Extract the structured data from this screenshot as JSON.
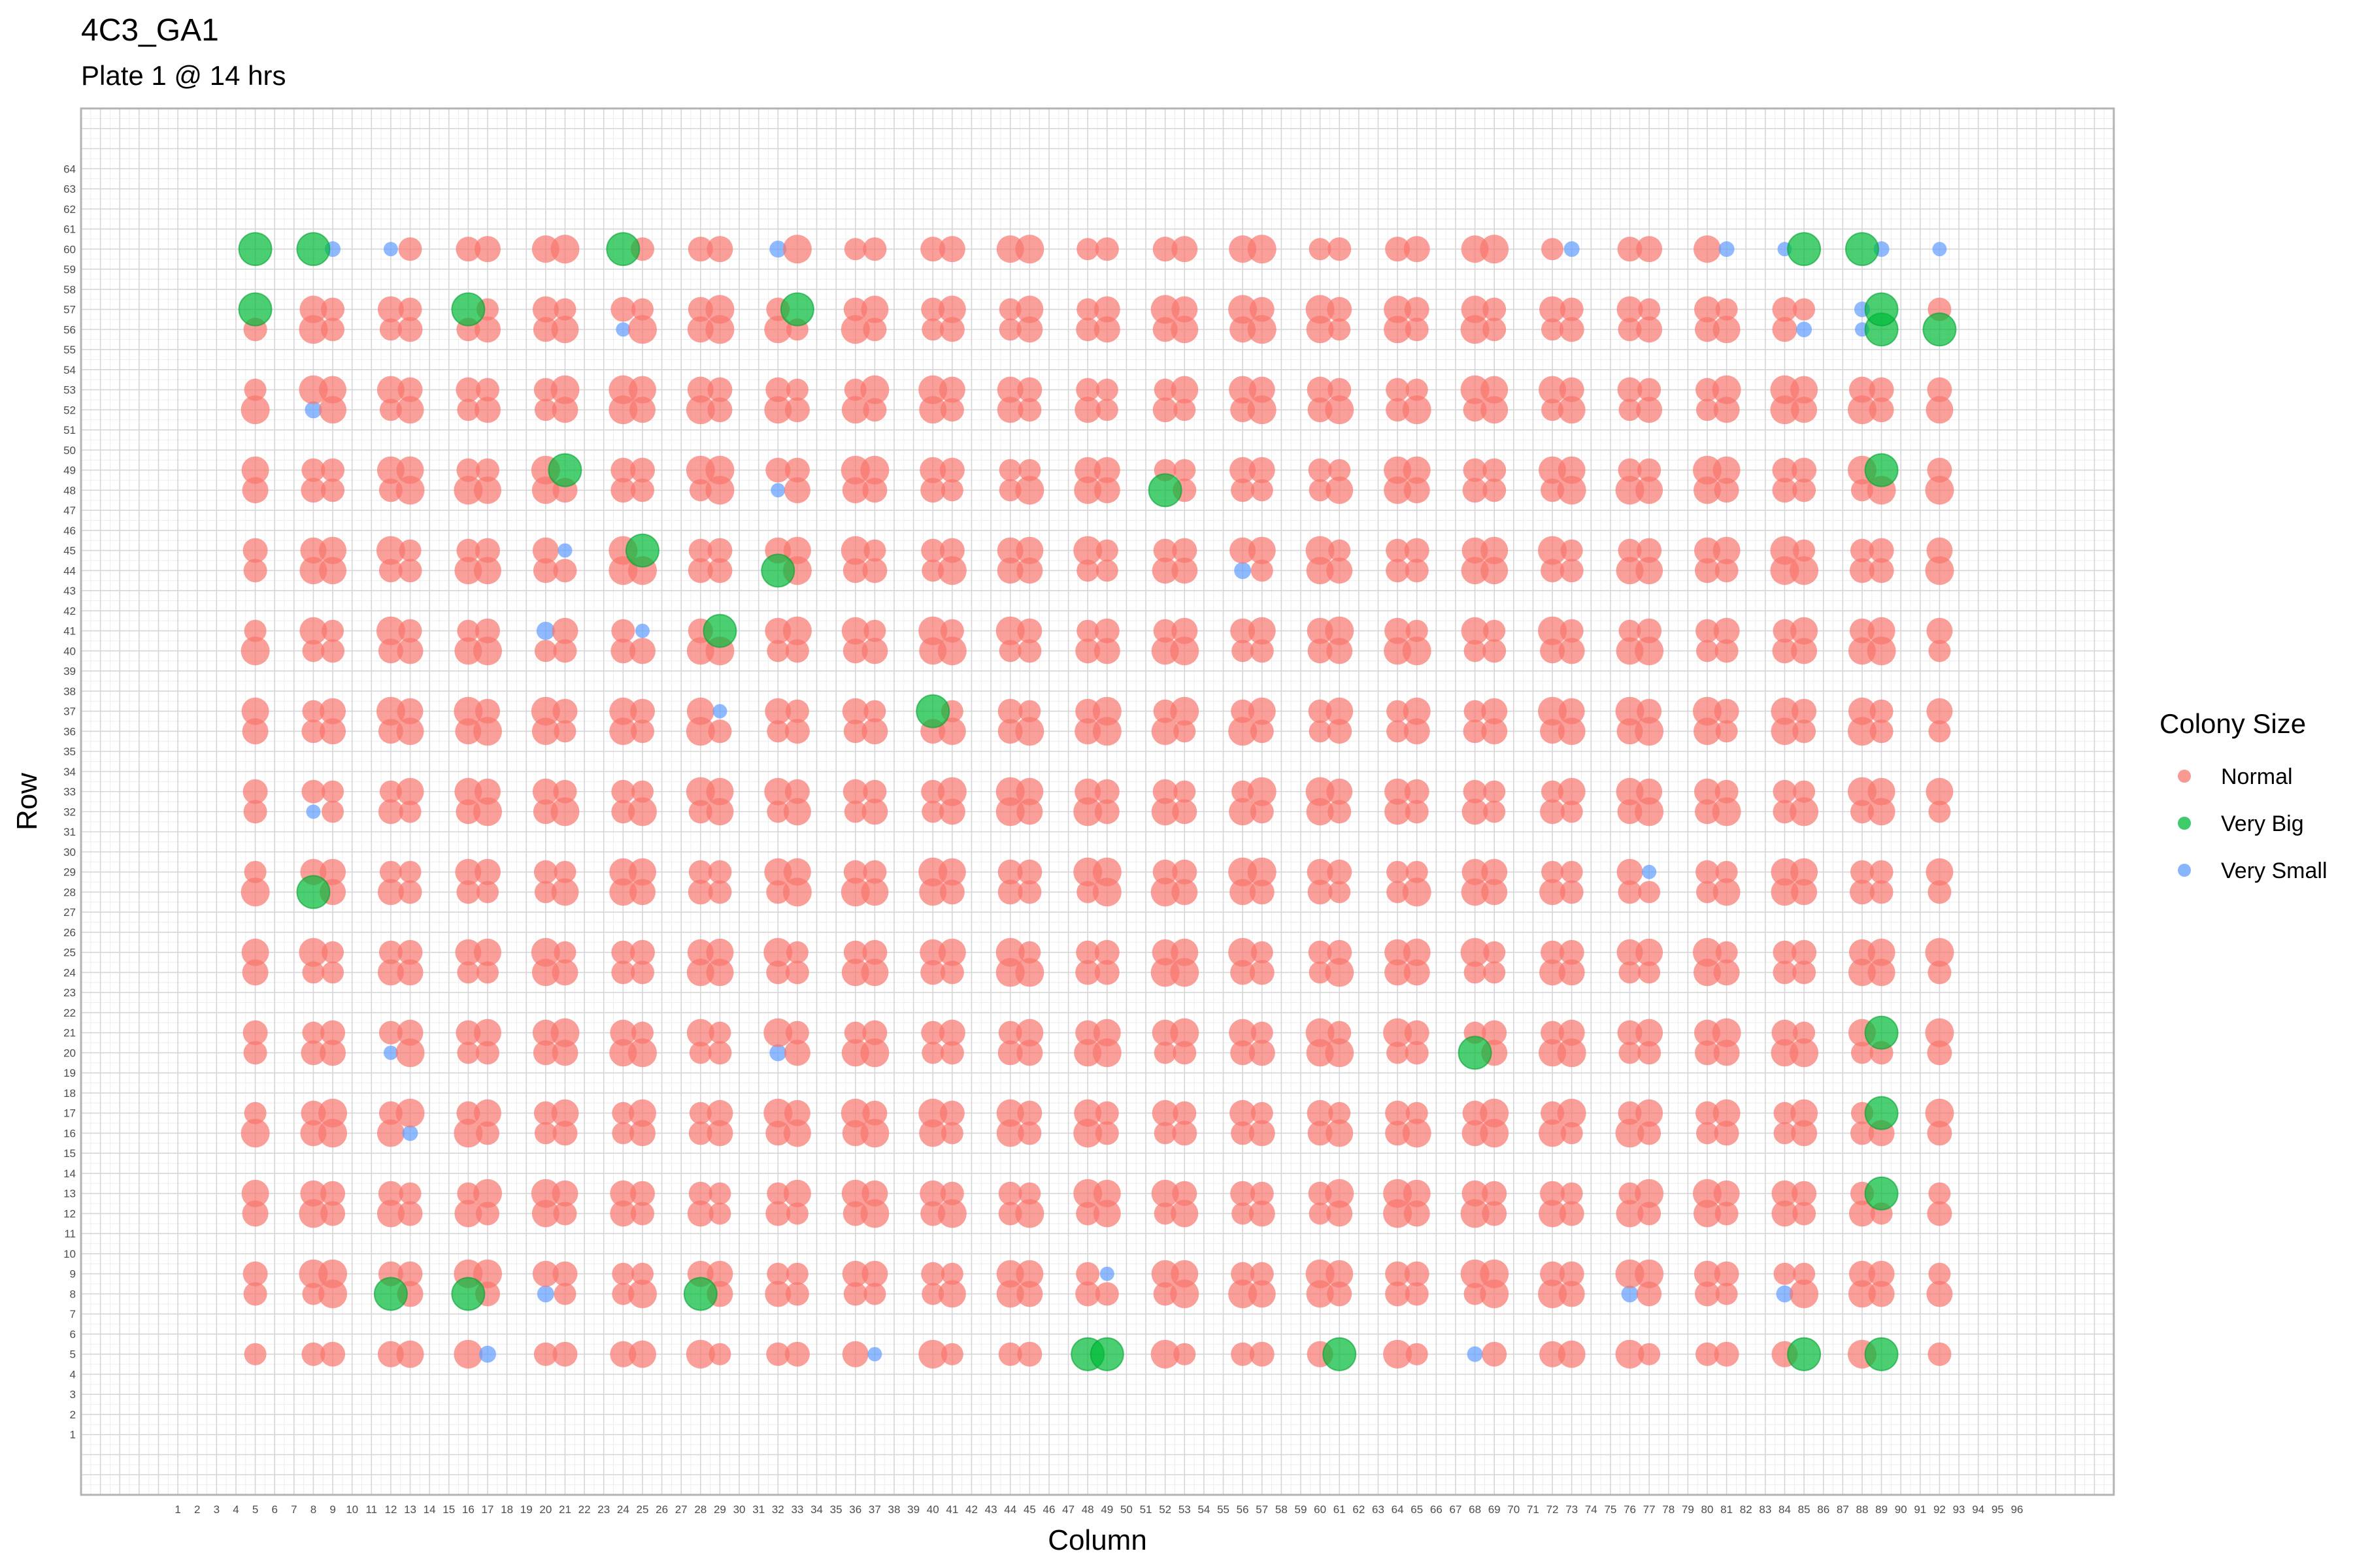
{
  "chart_data": {
    "type": "scatter",
    "title": "4C3_GA1",
    "subtitle": "Plate 1 @ 14 hrs",
    "xlabel": "Column",
    "ylabel": "Row",
    "xlim": [
      -4,
      101
    ],
    "ylim": [
      -2,
      67
    ],
    "x_ticks": [
      1,
      2,
      3,
      4,
      5,
      6,
      7,
      8,
      9,
      10,
      11,
      12,
      13,
      14,
      15,
      16,
      17,
      18,
      19,
      20,
      21,
      22,
      23,
      24,
      25,
      26,
      27,
      28,
      29,
      30,
      31,
      32,
      33,
      34,
      35,
      36,
      37,
      38,
      39,
      40,
      41,
      42,
      43,
      44,
      45,
      46,
      47,
      48,
      49,
      50,
      51,
      52,
      53,
      54,
      55,
      56,
      57,
      58,
      59,
      60,
      61,
      62,
      63,
      64,
      65,
      66,
      67,
      68,
      69,
      70,
      71,
      72,
      73,
      74,
      75,
      76,
      77,
      78,
      79,
      80,
      81,
      82,
      83,
      84,
      85,
      86,
      87,
      88,
      89,
      90,
      91,
      92,
      93,
      94,
      95,
      96
    ],
    "y_ticks": [
      1,
      2,
      3,
      4,
      5,
      6,
      7,
      8,
      9,
      10,
      11,
      12,
      13,
      14,
      15,
      16,
      17,
      18,
      19,
      20,
      21,
      22,
      23,
      24,
      25,
      26,
      27,
      28,
      29,
      30,
      31,
      32,
      33,
      34,
      35,
      36,
      37,
      38,
      39,
      40,
      41,
      42,
      43,
      44,
      45,
      46,
      47,
      48,
      49,
      50,
      51,
      52,
      53,
      54,
      55,
      56,
      57,
      58,
      59,
      60,
      61,
      62,
      63,
      64
    ],
    "grid": true,
    "legend": {
      "title": "Colony Size",
      "position": "right",
      "entries": [
        {
          "label": "Normal",
          "color": "#F8766D"
        },
        {
          "label": "Very Big",
          "color": "#00BA38"
        },
        {
          "label": "Very Small",
          "color": "#619CFF"
        }
      ]
    },
    "pin_columns": [
      5,
      8,
      9,
      12,
      13,
      16,
      17,
      20,
      21,
      24,
      25,
      28,
      29,
      32,
      33,
      36,
      37,
      40,
      41,
      44,
      45,
      48,
      49,
      52,
      53,
      56,
      57,
      60,
      61,
      64,
      65,
      68,
      69,
      72,
      73,
      76,
      77,
      80,
      81,
      84,
      85,
      88,
      89,
      92
    ],
    "pin_rows": [
      5,
      8,
      9,
      12,
      13,
      16,
      17,
      20,
      21,
      24,
      25,
      28,
      29,
      32,
      33,
      36,
      37,
      40,
      41,
      44,
      45,
      48,
      49,
      52,
      53,
      56,
      57,
      60
    ],
    "notes": "All pin positions (pin_columns x pin_rows) are Normal colonies unless listed under very_big or very_small. Points carry a qualitative size class only.",
    "very_big": [
      [
        5,
        60
      ],
      [
        8,
        60
      ],
      [
        24,
        60
      ],
      [
        85,
        60
      ],
      [
        88,
        60
      ],
      [
        5,
        57
      ],
      [
        16,
        57
      ],
      [
        33,
        57
      ],
      [
        89,
        57
      ],
      [
        89,
        56
      ],
      [
        92,
        56
      ],
      [
        21,
        49
      ],
      [
        89,
        49
      ],
      [
        52,
        48
      ],
      [
        25,
        45
      ],
      [
        32,
        44
      ],
      [
        29,
        41
      ],
      [
        40,
        37
      ],
      [
        8,
        28
      ],
      [
        89,
        21
      ],
      [
        68,
        20
      ],
      [
        89,
        17
      ],
      [
        89,
        13
      ],
      [
        12,
        8
      ],
      [
        16,
        8
      ],
      [
        28,
        8
      ],
      [
        48,
        5
      ],
      [
        49,
        5
      ],
      [
        61,
        5
      ],
      [
        85,
        5
      ],
      [
        89,
        5
      ]
    ],
    "very_small": [
      [
        9,
        60
      ],
      [
        12,
        60
      ],
      [
        32,
        60
      ],
      [
        73,
        60
      ],
      [
        81,
        60
      ],
      [
        84,
        60
      ],
      [
        89,
        60
      ],
      [
        92,
        60
      ],
      [
        88,
        57
      ],
      [
        24,
        56
      ],
      [
        85,
        56
      ],
      [
        88,
        56
      ],
      [
        8,
        52
      ],
      [
        32,
        48
      ],
      [
        21,
        45
      ],
      [
        56,
        44
      ],
      [
        20,
        41
      ],
      [
        25,
        41
      ],
      [
        29,
        37
      ],
      [
        8,
        32
      ],
      [
        77,
        29
      ],
      [
        12,
        20
      ],
      [
        32,
        20
      ],
      [
        13,
        16
      ],
      [
        49,
        9
      ],
      [
        20,
        8
      ],
      [
        76,
        8
      ],
      [
        84,
        8
      ],
      [
        17,
        5
      ],
      [
        37,
        5
      ],
      [
        68,
        5
      ]
    ]
  }
}
